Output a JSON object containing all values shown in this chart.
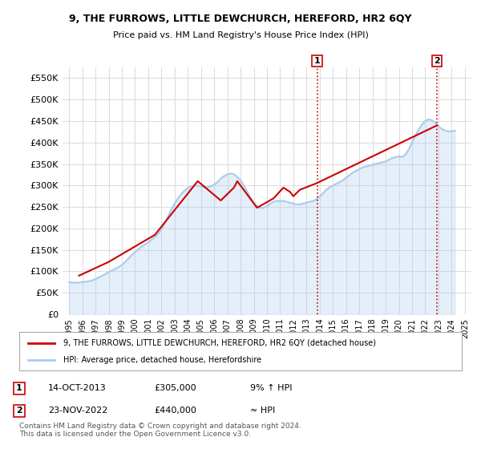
{
  "title": "9, THE FURROWS, LITTLE DEWCHURCH, HEREFORD, HR2 6QY",
  "subtitle": "Price paid vs. HM Land Registry's House Price Index (HPI)",
  "ylim": [
    0,
    575000
  ],
  "yticks": [
    0,
    50000,
    100000,
    150000,
    200000,
    250000,
    300000,
    350000,
    400000,
    450000,
    500000,
    550000
  ],
  "ytick_labels": [
    "£0",
    "£50K",
    "£100K",
    "£150K",
    "£200K",
    "£250K",
    "£300K",
    "£350K",
    "£400K",
    "£450K",
    "£500K",
    "£550K"
  ],
  "xtick_years": [
    "1995",
    "1996",
    "1997",
    "1998",
    "1999",
    "2000",
    "2001",
    "2002",
    "2003",
    "2004",
    "2005",
    "2006",
    "2007",
    "2008",
    "2009",
    "2010",
    "2011",
    "2012",
    "2013",
    "2014",
    "2015",
    "2016",
    "2017",
    "2018",
    "2019",
    "2020",
    "2021",
    "2022",
    "2023",
    "2024",
    "2025"
  ],
  "grid_color": "#dddddd",
  "plot_bg": "#ffffff",
  "fig_bg": "#ffffff",
  "red_line_color": "#cc0000",
  "blue_line_color": "#aaccee",
  "vline_color": "#cc0000",
  "vline_style": ":",
  "marker1_x": 2013.8,
  "marker2_x": 2022.9,
  "marker1_label": "1",
  "marker2_label": "2",
  "legend_red": "9, THE FURROWS, LITTLE DEWCHURCH, HEREFORD, HR2 6QY (detached house)",
  "legend_blue": "HPI: Average price, detached house, Herefordshire",
  "annotation1": [
    "1",
    "14-OCT-2013",
    "£305,000",
    "9% ↑ HPI"
  ],
  "annotation2": [
    "2",
    "23-NOV-2022",
    "£440,000",
    "≈ HPI"
  ],
  "footer": "Contains HM Land Registry data © Crown copyright and database right 2024.\nThis data is licensed under the Open Government Licence v3.0.",
  "hpi_data_x": [
    1995.0,
    1995.25,
    1995.5,
    1995.75,
    1996.0,
    1996.25,
    1996.5,
    1996.75,
    1997.0,
    1997.25,
    1997.5,
    1997.75,
    1998.0,
    1998.25,
    1998.5,
    1998.75,
    1999.0,
    1999.25,
    1999.5,
    1999.75,
    2000.0,
    2000.25,
    2000.5,
    2000.75,
    2001.0,
    2001.25,
    2001.5,
    2001.75,
    2002.0,
    2002.25,
    2002.5,
    2002.75,
    2003.0,
    2003.25,
    2003.5,
    2003.75,
    2004.0,
    2004.25,
    2004.5,
    2004.75,
    2005.0,
    2005.25,
    2005.5,
    2005.75,
    2006.0,
    2006.25,
    2006.5,
    2006.75,
    2007.0,
    2007.25,
    2007.5,
    2007.75,
    2008.0,
    2008.25,
    2008.5,
    2008.75,
    2009.0,
    2009.25,
    2009.5,
    2009.75,
    2010.0,
    2010.25,
    2010.5,
    2010.75,
    2011.0,
    2011.25,
    2011.5,
    2011.75,
    2012.0,
    2012.25,
    2012.5,
    2012.75,
    2013.0,
    2013.25,
    2013.5,
    2013.75,
    2014.0,
    2014.25,
    2014.5,
    2014.75,
    2015.0,
    2015.25,
    2015.5,
    2015.75,
    2016.0,
    2016.25,
    2016.5,
    2016.75,
    2017.0,
    2017.25,
    2017.5,
    2017.75,
    2018.0,
    2018.25,
    2018.5,
    2018.75,
    2019.0,
    2019.25,
    2019.5,
    2019.75,
    2020.0,
    2020.25,
    2020.5,
    2020.75,
    2021.0,
    2021.25,
    2021.5,
    2021.75,
    2022.0,
    2022.25,
    2022.5,
    2022.75,
    2023.0,
    2023.25,
    2023.5,
    2023.75,
    2024.0,
    2024.25
  ],
  "hpi_data_y": [
    75000,
    74000,
    73500,
    74000,
    75000,
    76000,
    77000,
    79000,
    82000,
    86000,
    90000,
    94000,
    98000,
    102000,
    106000,
    110000,
    115000,
    122000,
    130000,
    138000,
    145000,
    152000,
    158000,
    163000,
    168000,
    174000,
    180000,
    188000,
    198000,
    212000,
    228000,
    244000,
    258000,
    270000,
    280000,
    288000,
    294000,
    298000,
    300000,
    300000,
    298000,
    296000,
    296000,
    298000,
    302000,
    308000,
    316000,
    322000,
    326000,
    328000,
    326000,
    320000,
    312000,
    300000,
    286000,
    272000,
    260000,
    252000,
    248000,
    248000,
    252000,
    258000,
    262000,
    264000,
    264000,
    264000,
    262000,
    260000,
    258000,
    256000,
    256000,
    258000,
    260000,
    262000,
    264000,
    268000,
    274000,
    282000,
    290000,
    296000,
    300000,
    304000,
    308000,
    312000,
    318000,
    324000,
    330000,
    334000,
    338000,
    342000,
    344000,
    346000,
    348000,
    350000,
    352000,
    354000,
    356000,
    360000,
    364000,
    366000,
    368000,
    366000,
    372000,
    384000,
    400000,
    416000,
    430000,
    442000,
    450000,
    454000,
    452000,
    446000,
    438000,
    432000,
    428000,
    426000,
    426000,
    428000
  ],
  "red_data_x": [
    1995.75,
    1998.0,
    2001.5,
    2004.75,
    2006.5,
    2007.5,
    2007.75,
    2009.25,
    2010.5,
    2011.25,
    2011.75,
    2012.0,
    2012.5,
    2013.75,
    2022.9
  ],
  "red_data_y": [
    90000,
    122000,
    185000,
    310000,
    265000,
    295000,
    310000,
    248000,
    270000,
    295000,
    285000,
    275000,
    290000,
    305000,
    440000
  ]
}
